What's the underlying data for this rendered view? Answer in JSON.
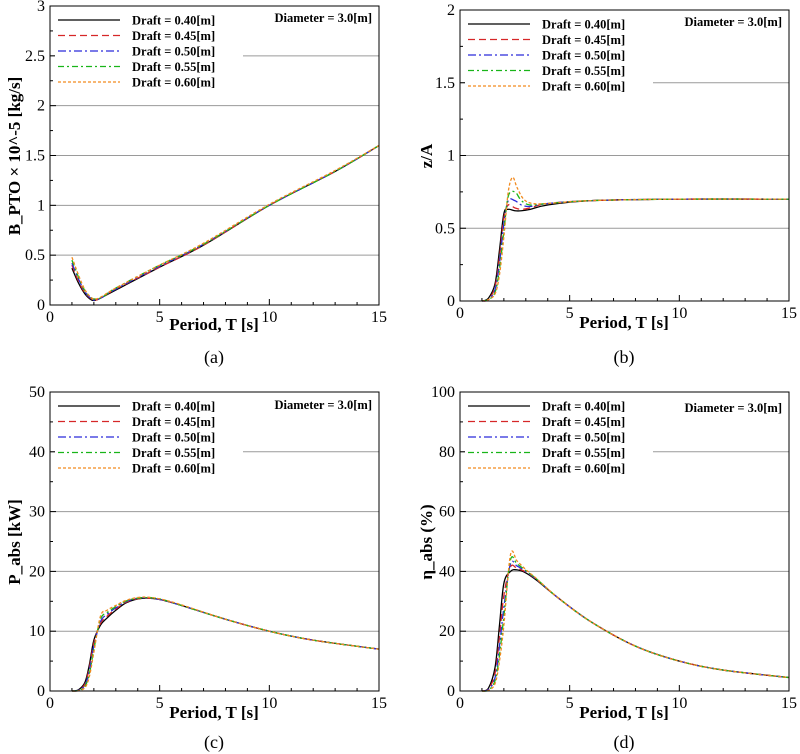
{
  "legend_labels": [
    "Draft = 0.40[m]",
    "Draft = 0.45[m]",
    "Draft = 0.50[m]",
    "Draft = 0.55[m]",
    "Draft = 0.60[m]"
  ],
  "series_styles": [
    {
      "color": "#000000",
      "dash": ""
    },
    {
      "color": "#d62728",
      "dash": "7,4"
    },
    {
      "color": "#2b2bd9",
      "dash": "8,3,2,3"
    },
    {
      "color": "#19b519",
      "dash": "6,3,2,3"
    },
    {
      "color": "#f28a1e",
      "dash": "3,2"
    }
  ],
  "chart_data": [
    {
      "type": "line",
      "caption": "(a)",
      "annotation": "Diameter = 3.0[m]",
      "xlabel": "Period, T [s]",
      "ylabel": "B_PTO × 10^-5 [kg/s]",
      "xlim": [
        0,
        15
      ],
      "ylim": [
        0,
        3
      ],
      "xticks": [
        0,
        5,
        10,
        15
      ],
      "xtick_labels": [
        "0",
        "5",
        "10",
        "15"
      ],
      "yticks": [
        0,
        0.5,
        1,
        1.5,
        2,
        2.5,
        3
      ],
      "ytick_labels": [
        "0",
        "0.5",
        "1",
        "1.5",
        "2",
        "2.5",
        "3"
      ],
      "series": [
        {
          "name": "Draft = 0.40[m]",
          "x": [
            1.0,
            1.3,
            1.6,
            1.9,
            2.1,
            2.4,
            3,
            5,
            7,
            10,
            13,
            15
          ],
          "y": [
            0.37,
            0.22,
            0.11,
            0.05,
            0.05,
            0.08,
            0.15,
            0.38,
            0.6,
            1.0,
            1.34,
            1.6
          ]
        },
        {
          "name": "Draft = 0.45[m]",
          "x": [
            1.0,
            1.3,
            1.6,
            1.9,
            2.1,
            2.4,
            3,
            5,
            7,
            10,
            13,
            15
          ],
          "y": [
            0.4,
            0.24,
            0.12,
            0.06,
            0.05,
            0.08,
            0.16,
            0.38,
            0.6,
            1.0,
            1.34,
            1.6
          ]
        },
        {
          "name": "Draft = 0.50[m]",
          "x": [
            1.0,
            1.3,
            1.6,
            1.9,
            2.1,
            2.4,
            3,
            5,
            7,
            10,
            13,
            15
          ],
          "y": [
            0.42,
            0.26,
            0.13,
            0.06,
            0.05,
            0.08,
            0.16,
            0.39,
            0.61,
            1.0,
            1.34,
            1.6
          ]
        },
        {
          "name": "Draft = 0.55[m]",
          "x": [
            1.0,
            1.3,
            1.6,
            1.9,
            2.1,
            2.4,
            3,
            5,
            7,
            10,
            13,
            15
          ],
          "y": [
            0.45,
            0.28,
            0.14,
            0.07,
            0.06,
            0.08,
            0.17,
            0.4,
            0.61,
            1.0,
            1.34,
            1.6
          ]
        },
        {
          "name": "Draft = 0.60[m]",
          "x": [
            1.0,
            1.3,
            1.6,
            1.9,
            2.1,
            2.4,
            3,
            5,
            7,
            10,
            13,
            15
          ],
          "y": [
            0.48,
            0.3,
            0.15,
            0.07,
            0.06,
            0.09,
            0.17,
            0.4,
            0.62,
            1.01,
            1.35,
            1.6
          ]
        }
      ]
    },
    {
      "type": "line",
      "caption": "(b)",
      "annotation": "Diameter = 3.0[m]",
      "xlabel": "Period, T [s]",
      "ylabel": "z/A",
      "xlim": [
        0,
        15
      ],
      "ylim": [
        0,
        2
      ],
      "xticks": [
        0,
        5,
        10,
        15
      ],
      "xtick_labels": [
        "0",
        "5",
        "10",
        "15"
      ],
      "yticks": [
        0,
        0.5,
        1,
        1.5,
        2
      ],
      "ytick_labels": [
        "0",
        "0.5",
        "1",
        "1.5",
        "2"
      ],
      "series": [
        {
          "name": "Draft = 0.40[m]",
          "x": [
            1.0,
            1.3,
            1.6,
            1.8,
            2.0,
            2.2,
            2.5,
            2.8,
            3.2,
            4,
            6,
            10,
            15
          ],
          "y": [
            0.0,
            0.02,
            0.12,
            0.35,
            0.6,
            0.63,
            0.62,
            0.62,
            0.63,
            0.66,
            0.69,
            0.7,
            0.7
          ]
        },
        {
          "name": "Draft = 0.45[m]",
          "x": [
            1.0,
            1.3,
            1.6,
            1.8,
            2.0,
            2.2,
            2.5,
            2.8,
            3.2,
            4,
            6,
            10,
            15
          ],
          "y": [
            0.0,
            0.01,
            0.1,
            0.3,
            0.57,
            0.66,
            0.64,
            0.63,
            0.64,
            0.67,
            0.69,
            0.7,
            0.7
          ]
        },
        {
          "name": "Draft = 0.50[m]",
          "x": [
            1.0,
            1.3,
            1.6,
            1.8,
            2.0,
            2.2,
            2.5,
            2.8,
            3.2,
            4,
            6,
            10,
            15
          ],
          "y": [
            0.0,
            0.01,
            0.08,
            0.26,
            0.53,
            0.69,
            0.69,
            0.66,
            0.65,
            0.67,
            0.69,
            0.7,
            0.7
          ]
        },
        {
          "name": "Draft = 0.55[m]",
          "x": [
            1.0,
            1.3,
            1.6,
            1.8,
            2.0,
            2.2,
            2.5,
            2.8,
            3.2,
            4,
            6,
            10,
            15
          ],
          "y": [
            0.0,
            0.01,
            0.06,
            0.22,
            0.48,
            0.72,
            0.75,
            0.69,
            0.66,
            0.67,
            0.69,
            0.7,
            0.7
          ]
        },
        {
          "name": "Draft = 0.60[m]",
          "x": [
            1.0,
            1.3,
            1.6,
            1.8,
            2.0,
            2.2,
            2.4,
            2.6,
            2.9,
            3.3,
            4,
            6,
            10,
            15
          ],
          "y": [
            0.0,
            0.01,
            0.05,
            0.18,
            0.44,
            0.75,
            0.85,
            0.78,
            0.7,
            0.67,
            0.67,
            0.69,
            0.7,
            0.7
          ]
        }
      ]
    },
    {
      "type": "line",
      "caption": "(c)",
      "annotation": "Diameter = 3.0[m]",
      "xlabel": "Period, T [s]",
      "ylabel": "P_abs [kW]",
      "xlim": [
        0,
        15
      ],
      "ylim": [
        0,
        50
      ],
      "xticks": [
        0,
        5,
        10,
        15
      ],
      "xtick_labels": [
        "0",
        "5",
        "10",
        "15"
      ],
      "yticks": [
        0,
        10,
        20,
        30,
        40,
        50
      ],
      "ytick_labels": [
        "0",
        "10",
        "20",
        "30",
        "40",
        "50"
      ],
      "series": [
        {
          "name": "Draft = 0.40[m]",
          "x": [
            1.0,
            1.3,
            1.6,
            1.8,
            2.0,
            2.3,
            2.6,
            3.0,
            3.5,
            4.2,
            5,
            6,
            8,
            10,
            12,
            15
          ],
          "y": [
            0,
            0.2,
            1.5,
            4.5,
            8.5,
            11,
            12.2,
            13.5,
            14.8,
            15.5,
            15.3,
            14.3,
            12,
            10,
            8.5,
            7
          ]
        },
        {
          "name": "Draft = 0.45[m]",
          "x": [
            1.0,
            1.3,
            1.6,
            1.8,
            2.0,
            2.3,
            2.6,
            3.0,
            3.5,
            4.2,
            5,
            6,
            8,
            10,
            12,
            15
          ],
          "y": [
            0,
            0.1,
            1.2,
            4,
            8,
            11.3,
            12.5,
            13.7,
            14.9,
            15.5,
            15.3,
            14.3,
            12,
            10,
            8.5,
            7
          ]
        },
        {
          "name": "Draft = 0.50[m]",
          "x": [
            1.0,
            1.3,
            1.6,
            1.8,
            2.0,
            2.3,
            2.6,
            3.0,
            3.5,
            4.2,
            5,
            6,
            8,
            10,
            12,
            15
          ],
          "y": [
            0,
            0.1,
            1,
            3.5,
            7.5,
            11.6,
            12.8,
            13.9,
            15,
            15.6,
            15.3,
            14.3,
            12,
            10,
            8.5,
            7
          ]
        },
        {
          "name": "Draft = 0.55[m]",
          "x": [
            1.0,
            1.3,
            1.6,
            1.8,
            2.0,
            2.3,
            2.6,
            3.0,
            3.5,
            4.2,
            5,
            6,
            8,
            10,
            12,
            15
          ],
          "y": [
            0,
            0.1,
            0.8,
            3,
            7,
            12,
            13.1,
            14.1,
            15.1,
            15.6,
            15.4,
            14.3,
            12,
            10,
            8.5,
            7
          ]
        },
        {
          "name": "Draft = 0.60[m]",
          "x": [
            1.0,
            1.3,
            1.6,
            1.8,
            2.0,
            2.3,
            2.6,
            3.0,
            3.5,
            4.2,
            5,
            6,
            8,
            10,
            12,
            15
          ],
          "y": [
            0,
            0.05,
            0.6,
            2.5,
            6.5,
            12.5,
            13.5,
            14.3,
            15.2,
            15.7,
            15.4,
            14.4,
            12,
            10,
            8.5,
            7
          ]
        }
      ]
    },
    {
      "type": "line",
      "caption": "(d)",
      "annotation": "Diameter = 3.0[m]",
      "xlabel": "Period, T [s]",
      "ylabel": "η_abs (%)",
      "xlim": [
        0,
        15
      ],
      "ylim": [
        0,
        100
      ],
      "xticks": [
        0,
        5,
        10,
        15
      ],
      "xtick_labels": [
        "0",
        "5",
        "10",
        "15"
      ],
      "yticks": [
        0,
        20,
        40,
        60,
        80,
        100
      ],
      "ytick_labels": [
        "0",
        "20",
        "40",
        "60",
        "80",
        "100"
      ],
      "series": [
        {
          "name": "Draft = 0.40[m]",
          "x": [
            1.0,
            1.3,
            1.6,
            1.8,
            2.0,
            2.3,
            2.6,
            3.0,
            3.5,
            4.5,
            6,
            8,
            10,
            12,
            15
          ],
          "y": [
            0,
            1,
            8,
            22,
            36,
            40,
            40.5,
            39.5,
            37,
            31,
            23,
            15,
            10,
            7,
            4.5
          ]
        },
        {
          "name": "Draft = 0.45[m]",
          "x": [
            1.0,
            1.3,
            1.6,
            1.8,
            2.0,
            2.3,
            2.6,
            3.0,
            3.5,
            4.5,
            6,
            8,
            10,
            12,
            15
          ],
          "y": [
            0,
            0.7,
            6,
            18,
            32,
            41.5,
            41,
            39.8,
            37.2,
            31,
            23,
            15,
            10,
            7,
            4.5
          ]
        },
        {
          "name": "Draft = 0.50[m]",
          "x": [
            1.0,
            1.3,
            1.6,
            1.8,
            2.0,
            2.3,
            2.6,
            3.0,
            3.5,
            4.5,
            6,
            8,
            10,
            12,
            15
          ],
          "y": [
            0,
            0.5,
            4.5,
            15,
            28,
            42.5,
            41.8,
            40,
            37.3,
            31,
            23,
            15,
            10,
            7,
            4.5
          ]
        },
        {
          "name": "Draft = 0.55[m]",
          "x": [
            1.0,
            1.3,
            1.6,
            1.8,
            2.0,
            2.3,
            2.6,
            3.0,
            3.5,
            4.5,
            6,
            8,
            10,
            12,
            15
          ],
          "y": [
            0,
            0.3,
            3.5,
            12,
            25,
            43.8,
            42.5,
            40.3,
            37.4,
            31,
            23,
            15,
            10,
            7,
            4.5
          ]
        },
        {
          "name": "Draft = 0.60[m]",
          "x": [
            1.0,
            1.3,
            1.6,
            1.8,
            2.0,
            2.3,
            2.6,
            3.0,
            3.5,
            4.5,
            6,
            8,
            10,
            12,
            15
          ],
          "y": [
            0,
            0.2,
            2.5,
            10,
            22,
            45.5,
            43.5,
            40.6,
            37.5,
            31,
            23,
            15,
            10,
            7,
            4.5
          ]
        }
      ]
    }
  ]
}
